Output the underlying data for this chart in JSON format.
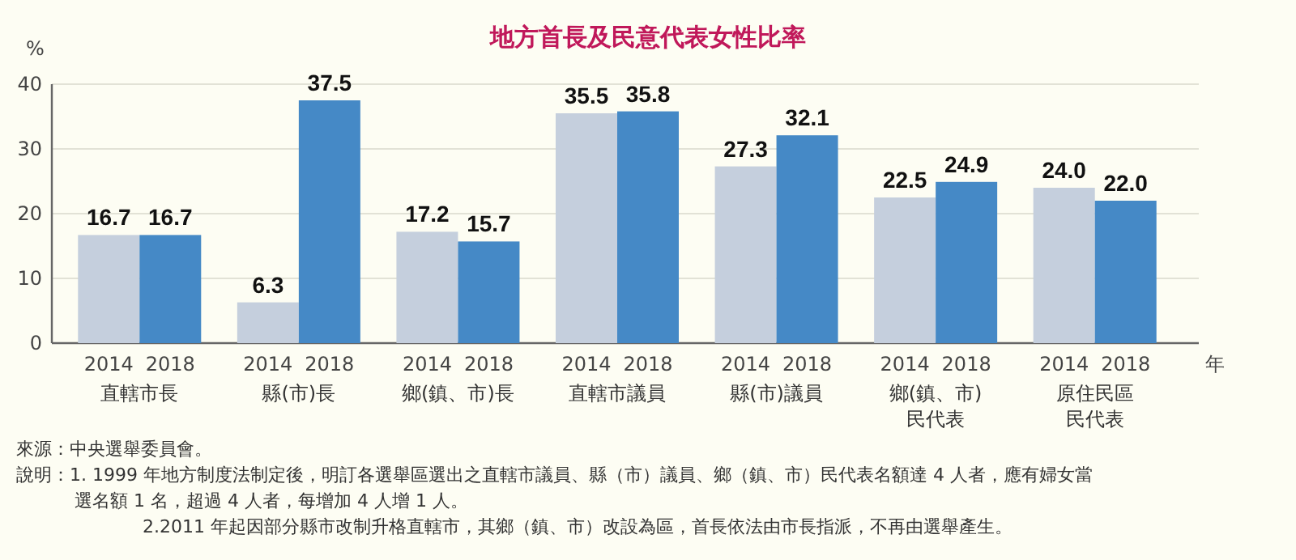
{
  "chart_data": {
    "type": "bar",
    "title": "地方首長及民意代表女性比率",
    "ylabel": "%",
    "xlabel": "年",
    "categories": [
      "直轄市長",
      "縣(市)長",
      "鄉(鎮、市)長",
      "直轄市議員",
      "縣(市)議員",
      "鄉(鎮、市)民代表",
      "原住民區民代表"
    ],
    "series": [
      {
        "name": "2014",
        "color": "#c5cfdd",
        "values": [
          16.7,
          6.3,
          17.2,
          35.5,
          27.3,
          22.5,
          24.0
        ]
      },
      {
        "name": "2018",
        "color": "#4589c6",
        "values": [
          16.7,
          37.5,
          15.7,
          35.8,
          32.1,
          24.9,
          22.0
        ]
      }
    ],
    "value_labels": [
      [
        "16.7",
        "6.3",
        "17.2",
        "35.5",
        "27.3",
        "22.5",
        "24.0"
      ],
      [
        "16.7",
        "37.5",
        "15.7",
        "35.8",
        "32.1",
        "24.9",
        "22.0"
      ]
    ],
    "ylim": [
      0,
      40
    ],
    "yticks": [
      0,
      10,
      20,
      30,
      40
    ],
    "grid": "y",
    "annotations": [
      "來源：中央選舉委員會。",
      "說明：1. 1999 年地方制度法制定後，明訂各選舉區選出之直轄市議員、縣（市）議員、鄉（鎮、市）民代表名額達 4 人者，應有婦女當選名額 1 名，超過 4 人者，每增加 4 人增 1 人。",
      "2.2011 年起因部分縣市改制升格直轄市，其鄉（鎮、市）改設為區，首長依法由市長指派，不再由選舉產生。"
    ]
  }
}
